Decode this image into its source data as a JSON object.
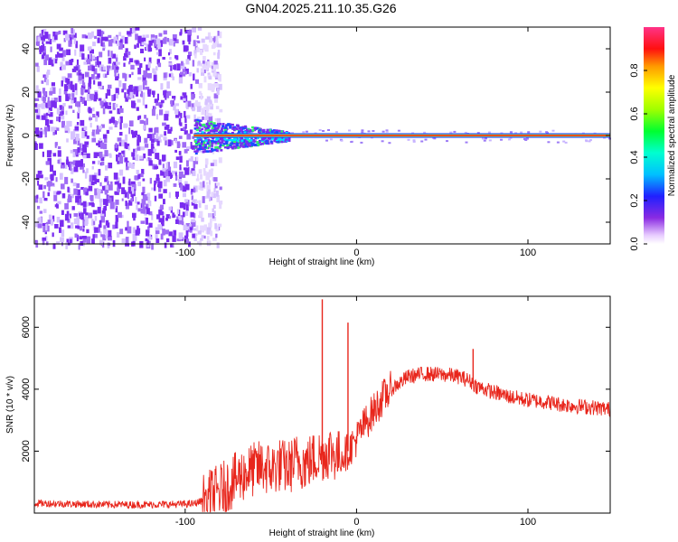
{
  "title": "GN04.2025.211.10.35.G26",
  "colors": {
    "snr_line": "#e8261c",
    "spectrogram_noise": "#7a2cf0",
    "spectrogram_band": "#ff2020"
  },
  "chart_data": [
    {
      "type": "heatmap",
      "xlabel": "Height of straight line (km)",
      "ylabel": "Frequency (Hz)",
      "xlim": [
        -188,
        148
      ],
      "ylim": [
        -50,
        50
      ],
      "xticks": [
        -100,
        0,
        100
      ],
      "yticks": [
        -40,
        -20,
        0,
        20,
        40
      ],
      "grid": false,
      "colorbar": {
        "label": "Normalized spectral amplitude",
        "range": [
          0,
          1
        ],
        "ticks": [
          "0.0",
          "0.2",
          "0.4",
          "0.6",
          "0.8"
        ],
        "colormap": "rainbow (magenta-blue-cyan-green-yellow-red-pink)"
      },
      "features": {
        "dominant_frequency_hz": 0,
        "broadband_noise_region_km": [
          -188,
          -80
        ],
        "spread_region_km": [
          -95,
          -40
        ],
        "narrow_line_region_km": [
          -40,
          148
        ]
      }
    },
    {
      "type": "line",
      "xlabel": "Height of straight line (km)",
      "ylabel": "SNR (10 * v/v)",
      "xlim": [
        -188,
        148
      ],
      "ylim": [
        0,
        7000
      ],
      "xticks": [
        -100,
        0,
        100
      ],
      "yticks": [
        2000,
        4000,
        6000
      ],
      "grid": false,
      "series": [
        {
          "x": [
            -188,
            -170,
            -150,
            -130,
            -110,
            -95,
            -90,
            -85,
            -80,
            -75,
            -70,
            -65,
            -60,
            -55,
            -50,
            -45,
            -40,
            -35,
            -30,
            -25,
            -20,
            -15,
            -10,
            -5,
            0,
            5,
            10,
            15,
            20,
            25,
            30,
            35,
            40,
            45,
            50,
            55,
            60,
            65,
            70,
            75,
            80,
            90,
            100,
            110,
            120,
            130,
            140,
            148
          ],
          "y": [
            320,
            300,
            280,
            270,
            280,
            300,
            400,
            550,
            700,
            900,
            1100,
            1300,
            1400,
            1500,
            1400,
            1550,
            1450,
            1700,
            1600,
            1750,
            1900,
            2000,
            1800,
            2000,
            2400,
            2900,
            3300,
            3700,
            4000,
            4200,
            4400,
            4450,
            4500,
            4480,
            4470,
            4450,
            4400,
            4300,
            4100,
            4000,
            3900,
            3750,
            3650,
            3600,
            3500,
            3450,
            3400,
            3350
          ]
        }
      ],
      "annotations": {
        "spikes": [
          {
            "x": -20,
            "y": 6900
          },
          {
            "x": -5,
            "y": 6150
          },
          {
            "x": 68,
            "y": 5300
          }
        ]
      }
    }
  ]
}
